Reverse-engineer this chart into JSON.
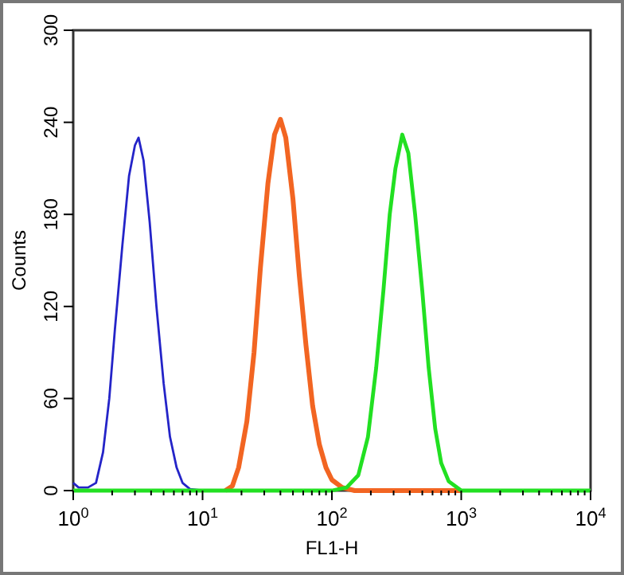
{
  "chart_data": {
    "type": "line",
    "xlabel": "FL1-H",
    "ylabel": "Counts",
    "log": "x",
    "xlim": [
      1,
      10000
    ],
    "ylim": [
      0,
      300
    ],
    "yticks": [
      0,
      60,
      120,
      180,
      240,
      300
    ],
    "xticks": [
      {
        "value": 1,
        "label": "10$^{0}$"
      },
      {
        "value": 2,
        "label": null
      },
      {
        "value": 3,
        "label": null
      },
      {
        "value": 4,
        "label": null
      },
      {
        "value": 5,
        "label": null
      },
      {
        "value": 6,
        "label": null
      },
      {
        "value": 7,
        "label": null
      },
      {
        "value": 8,
        "label": null
      },
      {
        "value": 9,
        "label": null
      },
      {
        "value": 10,
        "label": "10$^{1}$"
      },
      {
        "value": 20,
        "label": null
      },
      {
        "value": 30,
        "label": null
      },
      {
        "value": 40,
        "label": null
      },
      {
        "value": 50,
        "label": null
      },
      {
        "value": 60,
        "label": null
      },
      {
        "value": 70,
        "label": null
      },
      {
        "value": 80,
        "label": null
      },
      {
        "value": 90,
        "label": null
      },
      {
        "value": 100,
        "label": "10$^{2}$"
      },
      {
        "value": 200,
        "label": null
      },
      {
        "value": 300,
        "label": null
      },
      {
        "value": 400,
        "label": null
      },
      {
        "value": 500,
        "label": null
      },
      {
        "value": 600,
        "label": null
      },
      {
        "value": 700,
        "label": null
      },
      {
        "value": 800,
        "label": null
      },
      {
        "value": 900,
        "label": null
      },
      {
        "value": 1000,
        "label": "10$^{3}$"
      },
      {
        "value": 2000,
        "label": null
      },
      {
        "value": 3000,
        "label": null
      },
      {
        "value": 4000,
        "label": null
      },
      {
        "value": 5000,
        "label": null
      },
      {
        "value": 6000,
        "label": null
      },
      {
        "value": 7000,
        "label": null
      },
      {
        "value": 8000,
        "label": null
      },
      {
        "value": 9000,
        "label": null
      },
      {
        "value": 10000,
        "label": "10$^{4}$"
      }
    ],
    "grid": false,
    "marker": "none",
    "line_style": "solid",
    "series": [
      {
        "color": "#2424c8",
        "x": [
          1,
          1.1,
          1.3,
          1.5,
          1.7,
          1.9,
          2.1,
          2.4,
          2.7,
          3.0,
          3.2,
          3.5,
          3.9,
          4.4,
          5,
          5.6,
          6.3,
          7,
          8,
          10,
          15
        ],
        "values": [
          5,
          2,
          2,
          5,
          25,
          60,
          105,
          160,
          205,
          225,
          230,
          215,
          175,
          120,
          70,
          35,
          15,
          5,
          1,
          0,
          0
        ]
      },
      {
        "color": "#f26522",
        "x": [
          15,
          17,
          19,
          22,
          25,
          28,
          32,
          36,
          40,
          44,
          50,
          56,
          63,
          71,
          80,
          90,
          100,
          120,
          150,
          1000
        ],
        "values": [
          0,
          3,
          15,
          45,
          90,
          145,
          200,
          232,
          242,
          230,
          190,
          140,
          95,
          55,
          30,
          15,
          7,
          2,
          0,
          0
        ]
      },
      {
        "color": "#22e022",
        "x": [
          1,
          100,
          130,
          160,
          190,
          220,
          250,
          280,
          310,
          350,
          390,
          440,
          500,
          560,
          630,
          700,
          800,
          1000,
          10000
        ],
        "values": [
          0,
          0,
          2,
          10,
          35,
          80,
          130,
          180,
          210,
          232,
          220,
          180,
          130,
          80,
          40,
          18,
          6,
          0,
          0
        ]
      }
    ]
  }
}
